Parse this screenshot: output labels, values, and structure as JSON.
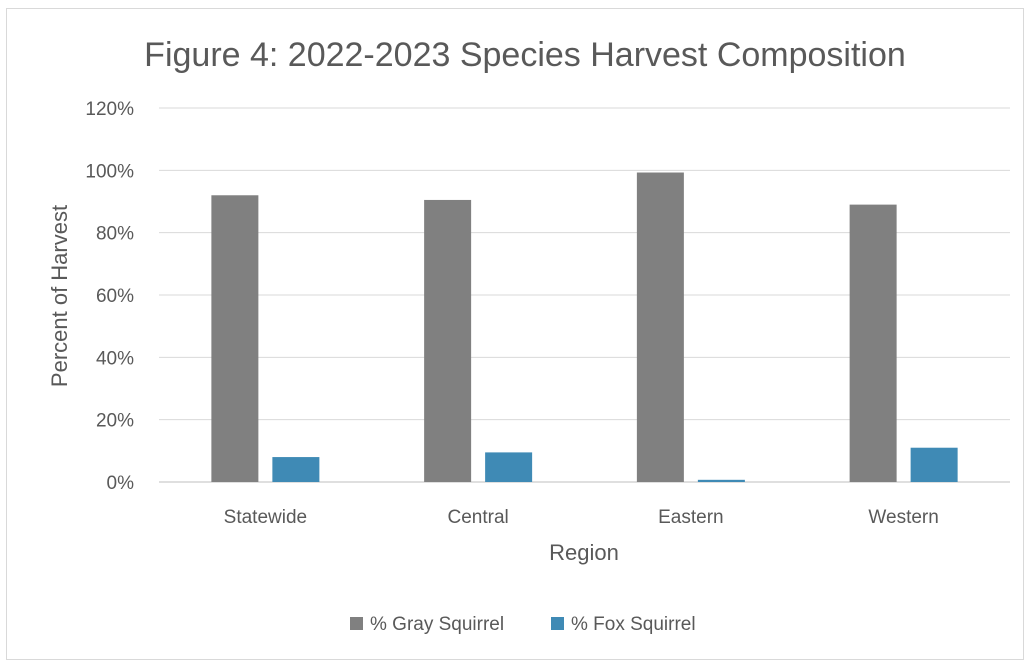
{
  "chart_data": {
    "type": "bar",
    "title": "Figure 4: 2022-2023 Species Harvest Composition",
    "xlabel": "Region",
    "ylabel": "Percent of  Harvest",
    "categories": [
      "Statewide",
      "Central",
      "Eastern",
      "Western"
    ],
    "series": [
      {
        "name": "% Gray Squirrel",
        "color": "#808080",
        "values": [
          92,
          90.5,
          99.3,
          89
        ]
      },
      {
        "name": "% Fox Squirrel",
        "color": "#3f8ab5",
        "values": [
          8,
          9.5,
          0.7,
          11
        ]
      }
    ],
    "ylim": [
      0,
      120
    ],
    "yticks": [
      "0%",
      "20%",
      "40%",
      "60%",
      "80%",
      "100%",
      "120%"
    ],
    "ytick_values": [
      0,
      20,
      40,
      60,
      80,
      100,
      120
    ],
    "grid": true,
    "legend": "bottom"
  }
}
